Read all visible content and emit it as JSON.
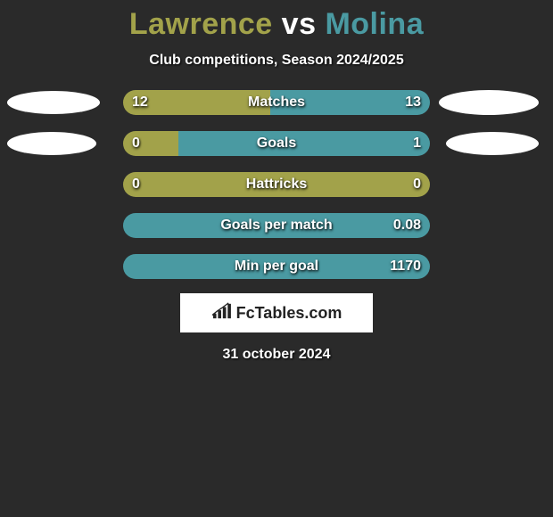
{
  "title": {
    "player1": "Lawrence",
    "vs": "vs",
    "player2": "Molina",
    "color_player1": "#a2a24a",
    "color_vs": "#ffffff",
    "color_player2": "#4a9aa2"
  },
  "subtitle": "Club competitions, Season 2024/2025",
  "date": "31 october 2024",
  "colors": {
    "background": "#2a2a2a",
    "bar_left": "#a2a24a",
    "bar_right": "#4a9aa2",
    "ellipse": "#ffffff",
    "text_shadow": "#000000"
  },
  "ellipses": {
    "row0": {
      "left_w": 104,
      "left_h": 26,
      "right_w": 112,
      "right_h": 28
    },
    "row1": {
      "left_w": 100,
      "left_h": 26,
      "right_w": 104,
      "right_h": 26
    }
  },
  "bars": [
    {
      "label": "Matches",
      "left_val": "12",
      "right_val": "13",
      "left_pct": 48.0,
      "right_pct": 52.0
    },
    {
      "label": "Goals",
      "left_val": "0",
      "right_val": "1",
      "left_pct": 18.0,
      "right_pct": 82.0
    },
    {
      "label": "Hattricks",
      "left_val": "0",
      "right_val": "0",
      "left_pct": 100.0,
      "right_pct": 0.0
    },
    {
      "label": "Goals per match",
      "left_val": "",
      "right_val": "0.08",
      "left_pct": 0.0,
      "right_pct": 100.0
    },
    {
      "label": "Min per goal",
      "left_val": "",
      "right_val": "1170",
      "left_pct": 0.0,
      "right_pct": 100.0
    }
  ],
  "logo": {
    "text": "FcTables.com",
    "icon_name": "bar-chart-icon"
  }
}
